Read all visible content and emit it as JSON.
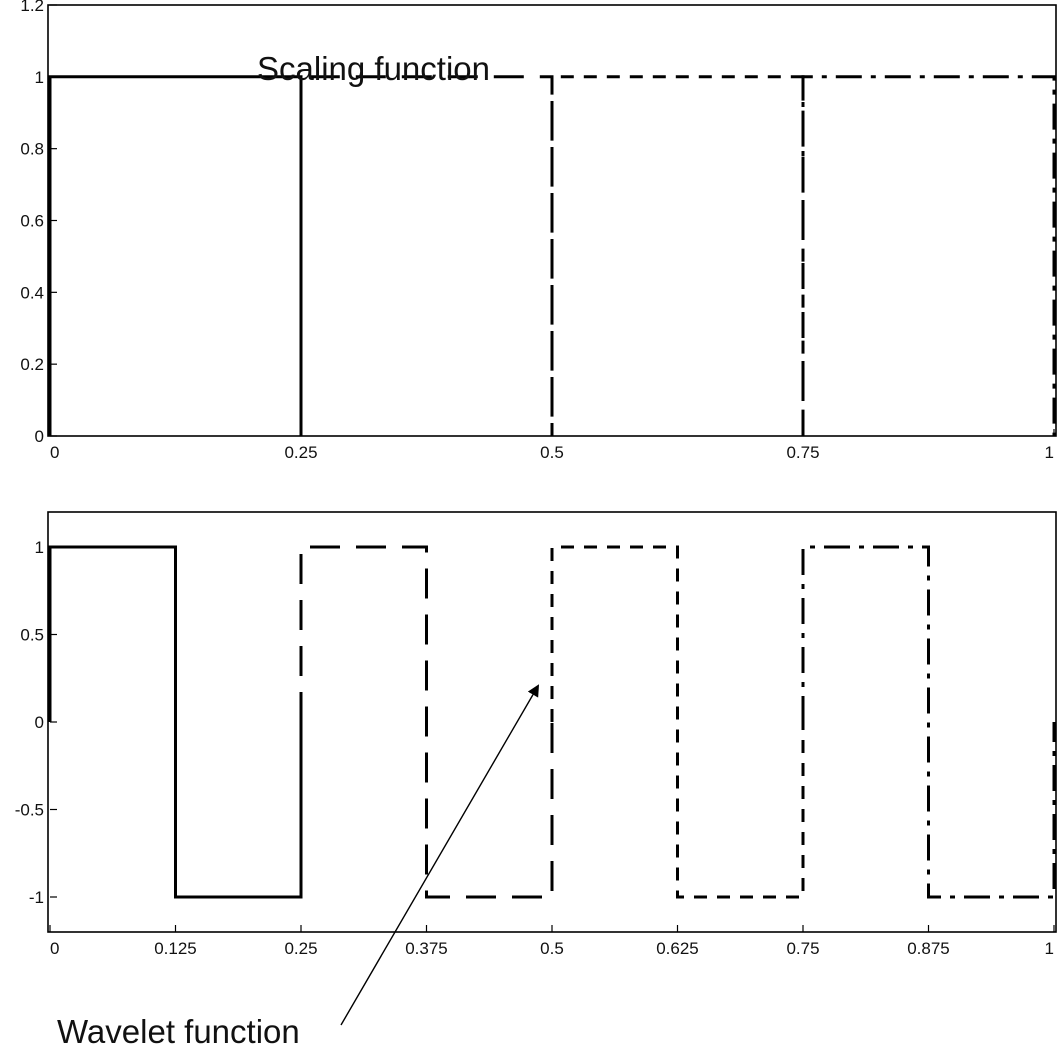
{
  "chart_data": [
    {
      "type": "line",
      "xlim": [
        0,
        1
      ],
      "ylim": [
        0,
        1.2
      ],
      "xticks": [
        "0",
        "0.25",
        "0.5",
        "0.75",
        "1"
      ],
      "yticks": [
        "0",
        "0.2",
        "0.4",
        "0.6",
        "0.8",
        "1",
        "1.2"
      ],
      "grid": false,
      "annotation": "Scaling function",
      "series": [
        {
          "line_style": "solid",
          "x": [
            0,
            0,
            0.25,
            0.25
          ],
          "y": [
            0,
            1,
            1,
            0
          ]
        },
        {
          "line_style": "long-dash",
          "x": [
            0.25,
            0.25,
            0.5,
            0.5
          ],
          "y": [
            0,
            1,
            1,
            0
          ]
        },
        {
          "line_style": "short-dash",
          "x": [
            0.5,
            0.5,
            0.75,
            0.75
          ],
          "y": [
            0,
            1,
            1,
            0
          ]
        },
        {
          "line_style": "dash-dot",
          "x": [
            0.75,
            0.75,
            1,
            1
          ],
          "y": [
            0,
            1,
            1,
            0
          ]
        }
      ]
    },
    {
      "type": "line",
      "xlim": [
        0,
        1
      ],
      "ylim": [
        -1.2,
        1.2
      ],
      "xticks": [
        "0",
        "0.125",
        "0.25",
        "0.375",
        "0.5",
        "0.625",
        "0.75",
        "0.875",
        "1"
      ],
      "yticks": [
        "-1",
        "-0.5",
        "0",
        "0.5",
        "1"
      ],
      "grid": false,
      "annotation": "Wavelet function",
      "series": [
        {
          "line_style": "solid",
          "x": [
            0,
            0,
            0.125,
            0.125,
            0.25,
            0.25
          ],
          "y": [
            0,
            1,
            1,
            -1,
            -1,
            0
          ]
        },
        {
          "line_style": "long-dash",
          "x": [
            0.25,
            0.25,
            0.375,
            0.375,
            0.5,
            0.5
          ],
          "y": [
            0,
            1,
            1,
            -1,
            -1,
            0
          ]
        },
        {
          "line_style": "short-dash",
          "x": [
            0.5,
            0.5,
            0.625,
            0.625,
            0.75,
            0.75
          ],
          "y": [
            0,
            1,
            1,
            -1,
            -1,
            0
          ]
        },
        {
          "line_style": "dash-dot",
          "x": [
            0.75,
            0.75,
            0.875,
            0.875,
            1,
            1
          ],
          "y": [
            0,
            1,
            1,
            -1,
            -1,
            0
          ]
        }
      ]
    }
  ]
}
